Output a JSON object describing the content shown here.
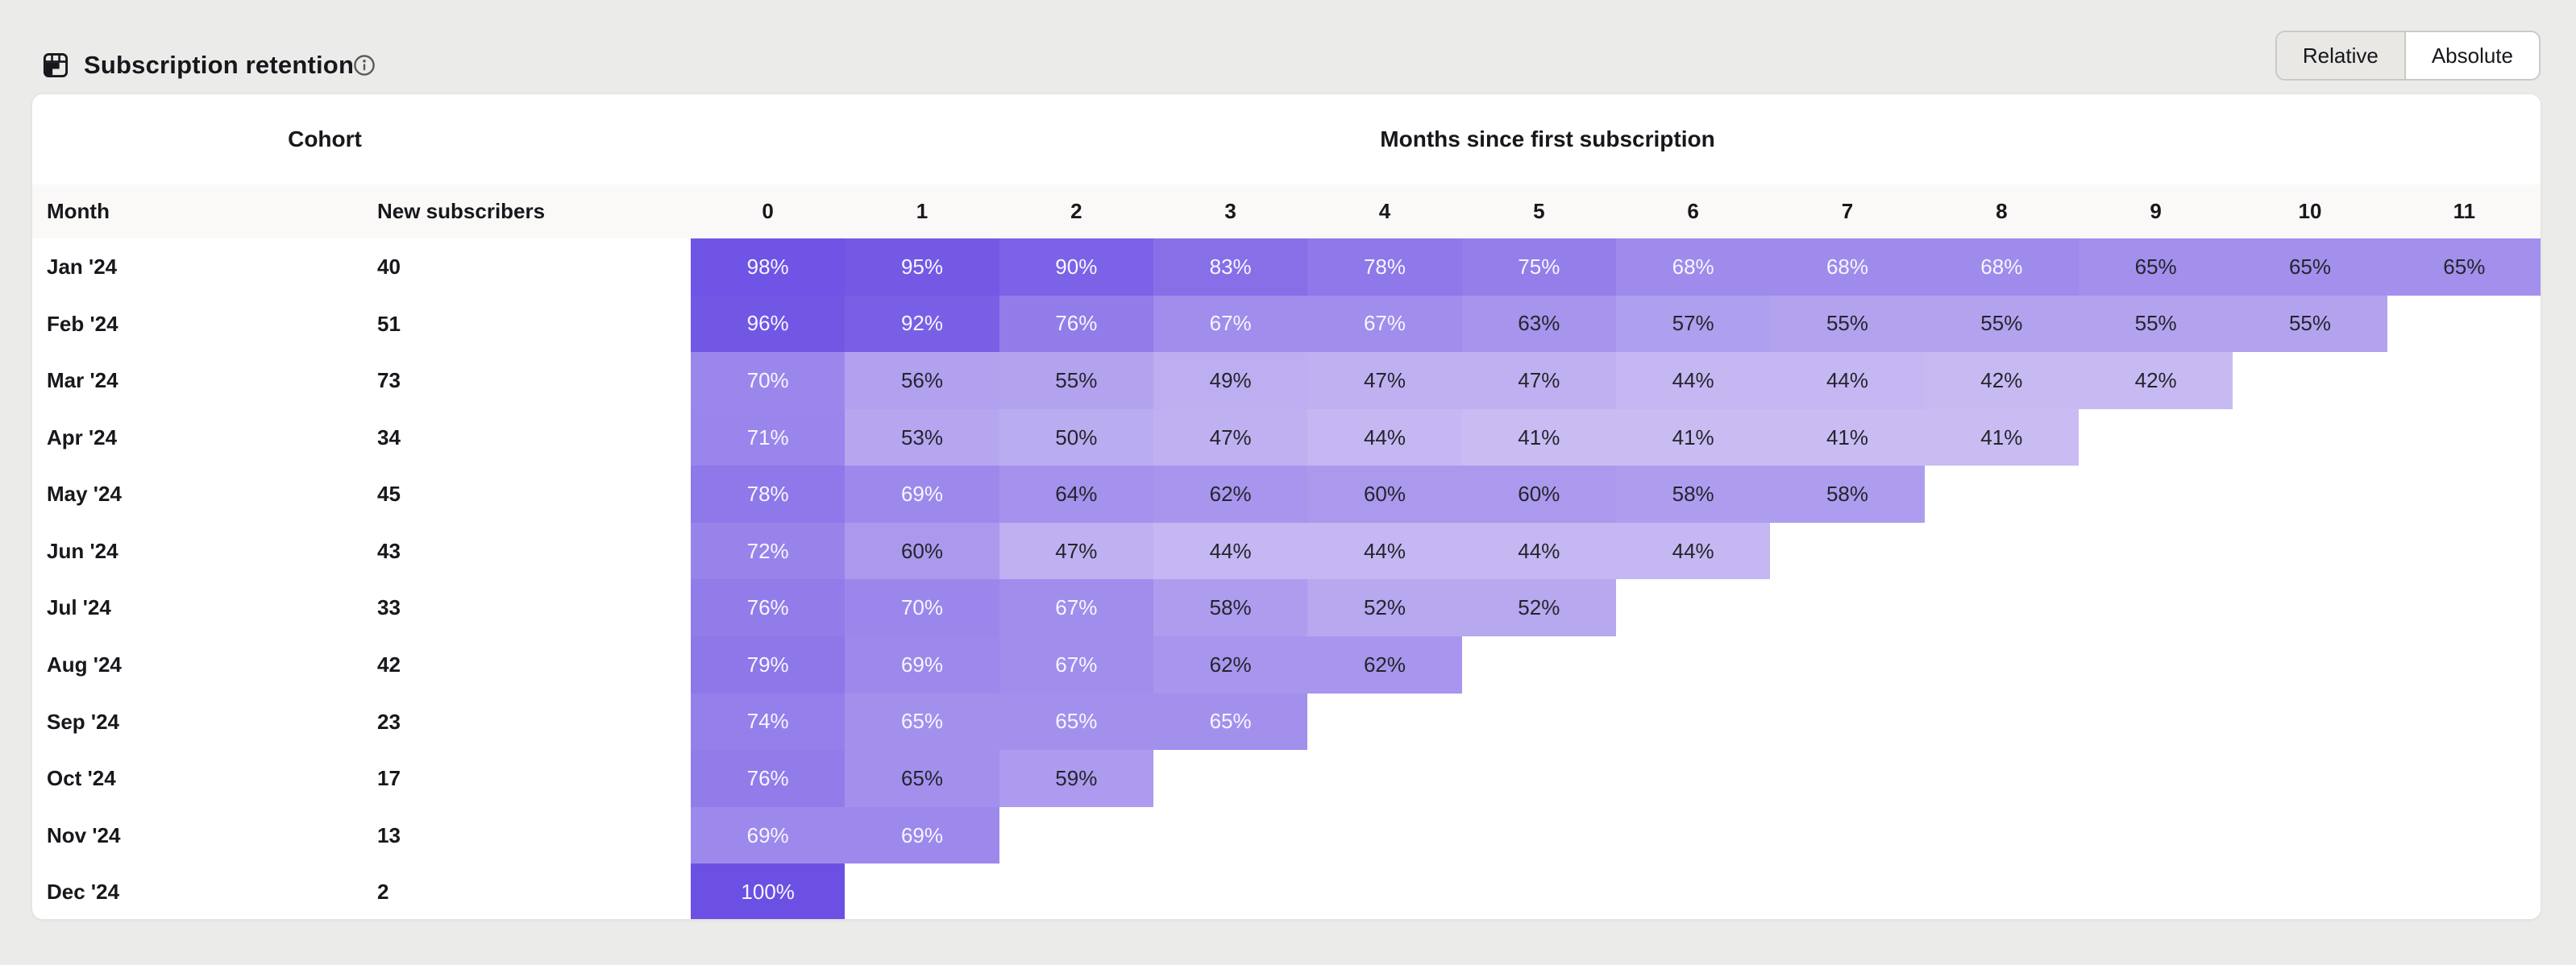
{
  "widget": {
    "title": "Subscription retention"
  },
  "toggle": {
    "options": [
      {
        "label": "Relative",
        "selected": true
      },
      {
        "label": "Absolute",
        "selected": false
      }
    ]
  },
  "table": {
    "cohort_header": "Cohort",
    "months_header": "Months since first subscription",
    "month_col_header": "Month",
    "subscribers_col_header": "New subscribers",
    "month_numbers": [
      "0",
      "1",
      "2",
      "3",
      "4",
      "5",
      "6",
      "7",
      "8",
      "9",
      "10",
      "11"
    ]
  },
  "chart_data": {
    "type": "heatmap",
    "title": "Subscription retention",
    "mode": "Relative",
    "x_label": "Months since first subscription",
    "columns": [
      0,
      1,
      2,
      3,
      4,
      5,
      6,
      7,
      8,
      9,
      10,
      11
    ],
    "value_unit": "%",
    "rows": [
      {
        "cohort": "Jan '24",
        "new_subscribers": 40,
        "retention_pct": [
          98,
          95,
          90,
          83,
          78,
          75,
          68,
          68,
          68,
          65,
          65,
          65
        ]
      },
      {
        "cohort": "Feb '24",
        "new_subscribers": 51,
        "retention_pct": [
          96,
          92,
          76,
          67,
          67,
          63,
          57,
          55,
          55,
          55,
          55
        ]
      },
      {
        "cohort": "Mar '24",
        "new_subscribers": 73,
        "retention_pct": [
          70,
          56,
          55,
          49,
          47,
          47,
          44,
          44,
          42,
          42
        ]
      },
      {
        "cohort": "Apr '24",
        "new_subscribers": 34,
        "retention_pct": [
          71,
          53,
          50,
          47,
          44,
          41,
          41,
          41,
          41
        ]
      },
      {
        "cohort": "May '24",
        "new_subscribers": 45,
        "retention_pct": [
          78,
          69,
          64,
          62,
          60,
          60,
          58,
          58
        ]
      },
      {
        "cohort": "Jun '24",
        "new_subscribers": 43,
        "retention_pct": [
          72,
          60,
          47,
          44,
          44,
          44,
          44
        ]
      },
      {
        "cohort": "Jul '24",
        "new_subscribers": 33,
        "retention_pct": [
          76,
          70,
          67,
          58,
          52,
          52
        ]
      },
      {
        "cohort": "Aug '24",
        "new_subscribers": 42,
        "retention_pct": [
          79,
          69,
          67,
          62,
          62
        ]
      },
      {
        "cohort": "Sep '24",
        "new_subscribers": 23,
        "retention_pct": [
          74,
          65,
          65,
          65
        ]
      },
      {
        "cohort": "Oct '24",
        "new_subscribers": 17,
        "retention_pct": [
          76,
          65,
          59
        ]
      },
      {
        "cohort": "Nov '24",
        "new_subscribers": 13,
        "retention_pct": [
          69,
          69
        ]
      },
      {
        "cohort": "Dec '24",
        "new_subscribers": 2,
        "retention_pct": [
          100
        ]
      }
    ]
  },
  "colors": {
    "page_bg": "#ebebe9",
    "card_bg": "#ffffff",
    "band_bg": "#faf9f7",
    "accent_dark": "#6c50e4",
    "accent_light": "#cabef3",
    "scale_domain": [
      40,
      100
    ],
    "cell_text_light": "#f7f6ff",
    "cell_text_dark": "#26242c",
    "selected_toggle_bg": "#e9e8e5"
  }
}
